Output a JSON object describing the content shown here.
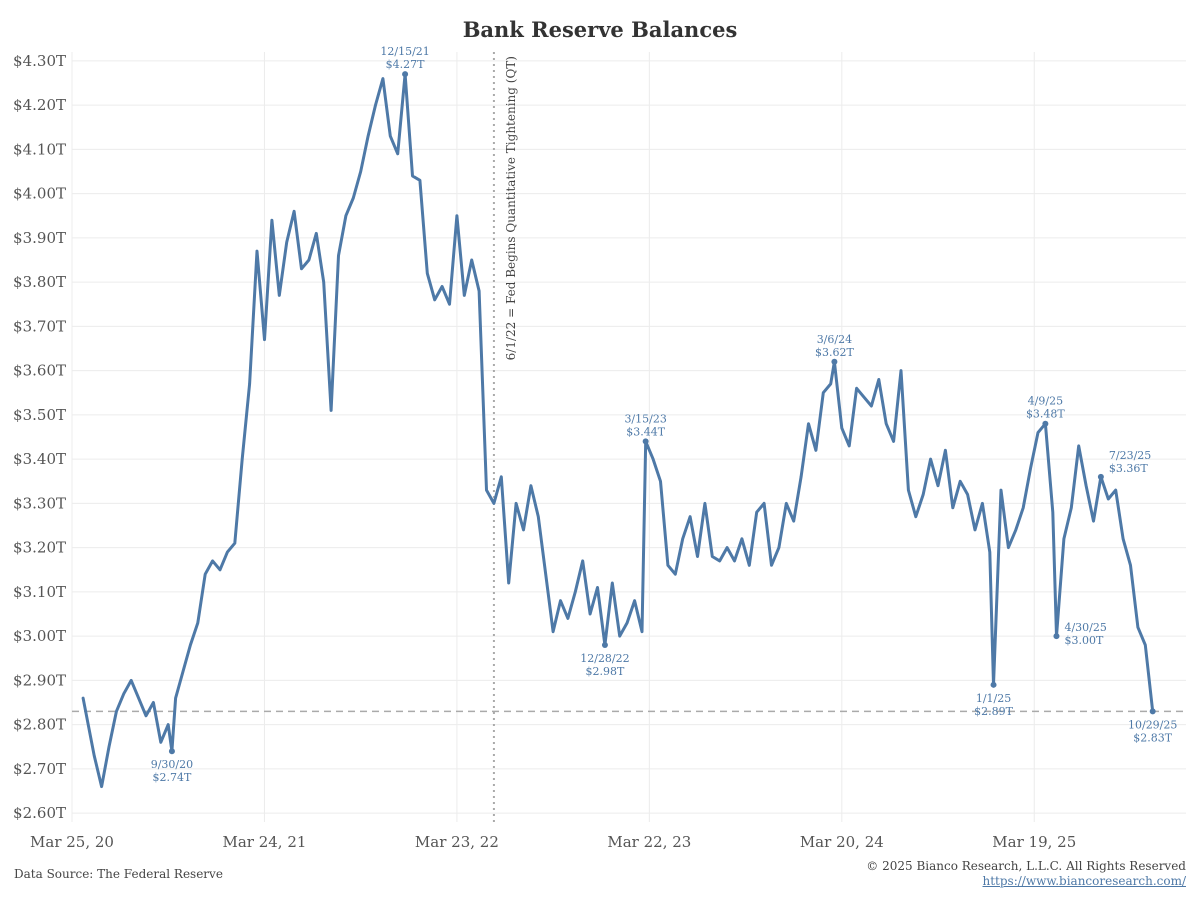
{
  "footer": {
    "source": "Data Source: The Federal Reserve",
    "copyright": "© 2025 Bianco Research, L.L.C. All Rights Reserved",
    "url": "https://www.biancoresearch.com/"
  },
  "colors": {
    "series": "#4e79a7",
    "grid": "#ececec",
    "reference": "#aaaaaa"
  },
  "chart_data": {
    "type": "line",
    "title": "Bank Reserve Balances",
    "xlabel": "",
    "ylabel": "",
    "xlim": [
      "2020-03-25",
      "2025-12-31"
    ],
    "ylim": [
      2.58,
      4.32
    ],
    "y_unit": "trillions USD",
    "y_ticks": [
      2.6,
      2.7,
      2.8,
      2.9,
      3.0,
      3.1,
      3.2,
      3.3,
      3.4,
      3.5,
      3.6,
      3.7,
      3.8,
      3.9,
      4.0,
      4.1,
      4.2,
      4.3
    ],
    "y_tick_labels": [
      "$2.60T",
      "$2.70T",
      "$2.80T",
      "$2.90T",
      "$3.00T",
      "$3.10T",
      "$3.20T",
      "$3.30T",
      "$3.40T",
      "$3.50T",
      "$3.60T",
      "$3.70T",
      "$3.80T",
      "$3.90T",
      "$4.00T",
      "$4.10T",
      "$4.20T",
      "$4.30T"
    ],
    "x_ticks": [
      "2020-03-25",
      "2021-03-24",
      "2022-03-23",
      "2023-03-22",
      "2024-03-20",
      "2025-03-19"
    ],
    "x_tick_labels": [
      "Mar 25, 20",
      "Mar 24, 21",
      "Mar 23, 22",
      "Mar 22, 23",
      "Mar 20, 24",
      "Mar 19, 25"
    ],
    "grid": true,
    "series": [
      {
        "x": [
          "2020-04-15",
          "2020-05-06",
          "2020-05-20",
          "2020-06-03",
          "2020-06-17",
          "2020-07-01",
          "2020-07-15",
          "2020-07-29",
          "2020-08-12",
          "2020-08-26",
          "2020-09-09",
          "2020-09-23",
          "2020-09-30",
          "2020-10-07",
          "2020-10-21",
          "2020-11-04",
          "2020-11-18",
          "2020-12-02",
          "2020-12-16",
          "2020-12-30",
          "2021-01-13",
          "2021-01-27",
          "2021-02-10",
          "2021-02-24",
          "2021-03-10",
          "2021-03-24",
          "2021-04-07",
          "2021-04-21",
          "2021-05-05",
          "2021-05-19",
          "2021-06-02",
          "2021-06-16",
          "2021-06-30",
          "2021-07-14",
          "2021-07-28",
          "2021-08-11",
          "2021-08-25",
          "2021-09-08",
          "2021-09-22",
          "2021-10-06",
          "2021-10-20",
          "2021-11-03",
          "2021-11-17",
          "2021-12-01",
          "2021-12-15",
          "2021-12-29",
          "2022-01-12",
          "2022-01-26",
          "2022-02-09",
          "2022-02-23",
          "2022-03-09",
          "2022-03-23",
          "2022-04-06",
          "2022-04-20",
          "2022-05-04",
          "2022-05-18",
          "2022-06-01",
          "2022-06-15",
          "2022-06-29",
          "2022-07-13",
          "2022-07-27",
          "2022-08-10",
          "2022-08-24",
          "2022-09-07",
          "2022-09-21",
          "2022-10-05",
          "2022-10-19",
          "2022-11-02",
          "2022-11-16",
          "2022-11-30",
          "2022-12-14",
          "2022-12-28",
          "2023-01-11",
          "2023-01-25",
          "2023-02-08",
          "2023-02-22",
          "2023-03-08",
          "2023-03-15",
          "2023-03-29",
          "2023-04-12",
          "2023-04-26",
          "2023-05-10",
          "2023-05-24",
          "2023-06-07",
          "2023-06-21",
          "2023-07-05",
          "2023-07-19",
          "2023-08-02",
          "2023-08-16",
          "2023-08-30",
          "2023-09-13",
          "2023-09-27",
          "2023-10-11",
          "2023-10-25",
          "2023-11-08",
          "2023-11-22",
          "2023-12-06",
          "2023-12-20",
          "2024-01-03",
          "2024-01-17",
          "2024-01-31",
          "2024-02-14",
          "2024-02-28",
          "2024-03-06",
          "2024-03-20",
          "2024-04-03",
          "2024-04-17",
          "2024-05-01",
          "2024-05-15",
          "2024-05-29",
          "2024-06-12",
          "2024-06-26",
          "2024-07-10",
          "2024-07-24",
          "2024-08-07",
          "2024-08-21",
          "2024-09-04",
          "2024-09-18",
          "2024-10-02",
          "2024-10-16",
          "2024-10-30",
          "2024-11-13",
          "2024-11-27",
          "2024-12-11",
          "2024-12-25",
          "2025-01-01",
          "2025-01-15",
          "2025-01-29",
          "2025-02-12",
          "2025-02-26",
          "2025-03-12",
          "2025-03-26",
          "2025-04-09",
          "2025-04-23",
          "2025-04-30",
          "2025-05-14",
          "2025-05-28",
          "2025-06-11",
          "2025-06-25",
          "2025-07-09",
          "2025-07-23",
          "2025-08-06",
          "2025-08-20",
          "2025-09-03",
          "2025-09-17",
          "2025-10-01",
          "2025-10-15",
          "2025-10-29"
        ],
        "y": [
          2.86,
          2.73,
          2.66,
          2.75,
          2.83,
          2.87,
          2.9,
          2.86,
          2.82,
          2.85,
          2.76,
          2.8,
          2.74,
          2.86,
          2.92,
          2.98,
          3.03,
          3.14,
          3.17,
          3.15,
          3.19,
          3.21,
          3.4,
          3.57,
          3.87,
          3.67,
          3.94,
          3.77,
          3.89,
          3.96,
          3.83,
          3.85,
          3.91,
          3.8,
          3.51,
          3.86,
          3.95,
          3.99,
          4.05,
          4.13,
          4.2,
          4.26,
          4.13,
          4.09,
          4.27,
          4.04,
          4.03,
          3.82,
          3.76,
          3.79,
          3.75,
          3.95,
          3.77,
          3.85,
          3.78,
          3.33,
          3.3,
          3.36,
          3.12,
          3.3,
          3.24,
          3.34,
          3.27,
          3.14,
          3.01,
          3.08,
          3.04,
          3.1,
          3.17,
          3.05,
          3.11,
          2.98,
          3.12,
          3.0,
          3.03,
          3.08,
          3.01,
          3.44,
          3.4,
          3.35,
          3.16,
          3.14,
          3.22,
          3.27,
          3.18,
          3.3,
          3.18,
          3.17,
          3.2,
          3.17,
          3.22,
          3.16,
          3.28,
          3.3,
          3.16,
          3.2,
          3.3,
          3.26,
          3.36,
          3.48,
          3.42,
          3.55,
          3.57,
          3.62,
          3.47,
          3.43,
          3.56,
          3.54,
          3.52,
          3.58,
          3.48,
          3.44,
          3.6,
          3.33,
          3.27,
          3.32,
          3.4,
          3.34,
          3.42,
          3.29,
          3.35,
          3.32,
          3.24,
          3.3,
          3.19,
          2.89,
          3.33,
          3.2,
          3.24,
          3.29,
          3.38,
          3.46,
          3.48,
          3.28,
          3.0,
          3.22,
          3.29,
          3.43,
          3.34,
          3.26,
          3.36,
          3.31,
          3.33,
          3.22,
          3.16,
          3.02,
          2.98,
          2.83
        ]
      }
    ],
    "annotations": [
      {
        "date_label": "9/30/20",
        "value_label": "$2.74T",
        "x": "2020-09-30",
        "y": 2.74,
        "place": "below"
      },
      {
        "date_label": "12/15/21",
        "value_label": "$4.27T",
        "x": "2021-12-15",
        "y": 4.27,
        "place": "above"
      },
      {
        "date_label": "12/28/22",
        "value_label": "$2.98T",
        "x": "2022-12-28",
        "y": 2.98,
        "place": "below"
      },
      {
        "date_label": "3/15/23",
        "value_label": "$3.44T",
        "x": "2023-03-15",
        "y": 3.44,
        "place": "above"
      },
      {
        "date_label": "3/6/24",
        "value_label": "$3.62T",
        "x": "2024-03-06",
        "y": 3.62,
        "place": "above"
      },
      {
        "date_label": "1/1/25",
        "value_label": "$2.89T",
        "x": "2025-01-01",
        "y": 2.89,
        "place": "below"
      },
      {
        "date_label": "4/9/25",
        "value_label": "$3.48T",
        "x": "2025-04-09",
        "y": 3.48,
        "place": "above"
      },
      {
        "date_label": "4/30/25",
        "value_label": "$3.00T",
        "x": "2025-04-30",
        "y": 3.0,
        "place": "right"
      },
      {
        "date_label": "7/23/25",
        "value_label": "$3.36T",
        "x": "2025-07-23",
        "y": 3.36,
        "place": "above-right"
      },
      {
        "date_label": "10/29/25",
        "value_label": "$2.83T",
        "x": "2025-10-29",
        "y": 2.83,
        "place": "below"
      }
    ],
    "reference_lines": [
      {
        "orientation": "vertical",
        "x": "2022-06-01",
        "label": "6/1/22 = Fed Begins Quantitative Tightening (QT)",
        "style": "dotted"
      },
      {
        "orientation": "horizontal",
        "y": 2.83,
        "style": "dashed"
      }
    ]
  }
}
